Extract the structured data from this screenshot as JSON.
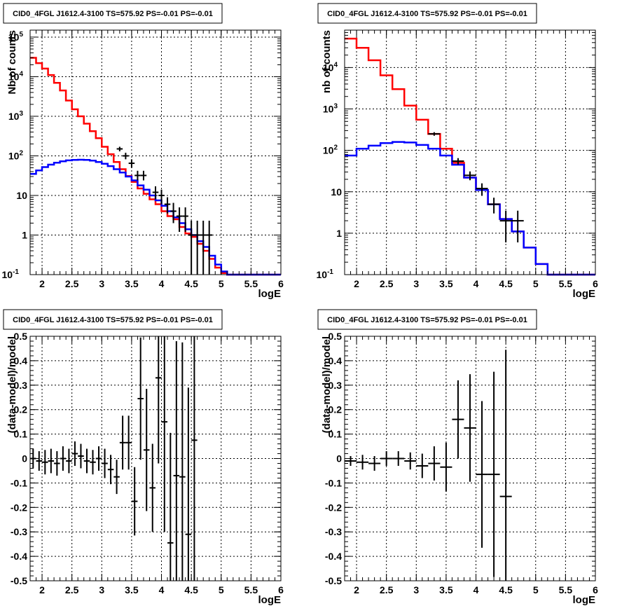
{
  "chart_data": [
    {
      "id": "counts-fine",
      "type": "line",
      "title": "CID0_4FGL J1612.4-3100 TS=575.92 PS=-0.01 PS=-0.01",
      "xlabel": "logE",
      "ylabel": "Nb of counts",
      "xlim": [
        1.8,
        6.0
      ],
      "ylim": [
        0.1,
        150000
      ],
      "yscale": "log",
      "grid": true,
      "x_ticks": [
        2,
        2.5,
        3,
        3.5,
        4,
        4.5,
        5,
        5.5,
        6
      ],
      "x_tick_labels": [
        "2",
        "2.5",
        "3",
        "3.5",
        "4",
        "4.5",
        "5",
        "5.5",
        "6"
      ],
      "y_ticks": [
        0.1,
        1,
        10,
        100,
        1000,
        10000,
        100000
      ],
      "y_tick_labels": [
        "10^-1",
        "1",
        "10",
        "10^2",
        "10^3",
        "10^4",
        "10^5"
      ],
      "bin_edges": [
        1.8,
        1.9,
        2.0,
        2.1,
        2.2,
        2.3,
        2.4,
        2.5,
        2.6,
        2.7,
        2.8,
        2.9,
        3.0,
        3.1,
        3.2,
        3.3,
        3.4,
        3.5,
        3.6,
        3.7,
        3.8,
        3.9,
        4.0,
        4.1,
        4.2,
        4.3,
        4.4,
        4.5,
        4.6,
        4.7,
        4.8,
        4.9,
        5.0,
        5.1,
        5.2,
        5.3,
        5.4,
        5.5,
        5.6,
        5.7,
        5.8,
        5.9,
        6.0
      ],
      "series": [
        {
          "color": "#ff0000",
          "drawstyle": "steps",
          "values": [
            30000,
            22000,
            16000,
            11000,
            7000,
            4500,
            2500,
            1500,
            1000,
            650,
            420,
            280,
            170,
            110,
            70,
            46,
            31,
            22,
            15,
            11,
            8,
            6,
            4,
            3,
            2.5,
            1.6,
            1.1,
            0.9,
            0.6,
            0.4,
            0.25,
            0.15,
            0.11,
            0.1,
            0.1,
            0.1,
            0.1,
            0.1,
            0.1,
            0.1,
            0.1,
            0.1
          ]
        },
        {
          "color": "#0000ff",
          "drawstyle": "steps",
          "values": [
            35,
            43,
            52,
            60,
            67,
            73,
            77,
            79,
            80,
            79,
            76,
            70,
            63,
            55,
            46,
            38,
            30,
            24,
            18,
            14,
            10,
            7.5,
            5.5,
            4,
            2.8,
            2,
            1.4,
            1,
            0.7,
            0.5,
            0.3,
            0.18,
            0.12,
            0.1,
            0.1,
            0.1,
            0.1,
            0.1,
            0.1,
            0.1,
            0.1,
            0.1
          ]
        },
        {
          "color": "#000000",
          "drawstyle": "points",
          "points": [
            {
              "x": 3.3,
              "y": 150,
              "lo": 130,
              "hi": 170
            },
            {
              "x": 3.4,
              "y": 100,
              "lo": 82,
              "hi": 120
            },
            {
              "x": 3.5,
              "y": 65,
              "lo": 50,
              "hi": 82
            },
            {
              "x": 3.6,
              "y": 32,
              "lo": 24,
              "hi": 42
            },
            {
              "x": 3.7,
              "y": 32,
              "lo": 24,
              "hi": 42
            },
            {
              "x": 3.9,
              "y": 12,
              "lo": 8,
              "hi": 17
            },
            {
              "x": 4.0,
              "y": 10,
              "lo": 6,
              "hi": 14
            },
            {
              "x": 4.1,
              "y": 6,
              "lo": 3.5,
              "hi": 9
            },
            {
              "x": 4.2,
              "y": 4,
              "lo": 2,
              "hi": 6.5
            },
            {
              "x": 4.3,
              "y": 3,
              "lo": 1.2,
              "hi": 5
            },
            {
              "x": 4.4,
              "y": 3,
              "lo": 1.2,
              "hi": 5
            },
            {
              "x": 4.5,
              "y": 1,
              "lo": 0.1,
              "hi": 2.3
            },
            {
              "x": 4.6,
              "y": 1,
              "lo": 0.1,
              "hi": 2.3
            },
            {
              "x": 4.7,
              "y": 1,
              "lo": 0.1,
              "hi": 2.3
            },
            {
              "x": 4.8,
              "y": 1,
              "lo": 0.1,
              "hi": 2.3
            }
          ]
        }
      ]
    },
    {
      "id": "counts-coarse",
      "type": "line",
      "title": "CID0_4FGL J1612.4-3100 TS=575.92 PS=-0.01 PS=-0.01",
      "xlabel": "logE",
      "ylabel": "nb of counts",
      "xlim": [
        1.8,
        6.0
      ],
      "ylim": [
        0.1,
        80000
      ],
      "yscale": "log",
      "grid": true,
      "x_ticks": [
        2,
        2.5,
        3,
        3.5,
        4,
        4.5,
        5,
        5.5,
        6
      ],
      "x_tick_labels": [
        "2",
        "2.5",
        "3",
        "3.5",
        "4",
        "4.5",
        "5",
        "5.5",
        "6"
      ],
      "y_ticks": [
        0.1,
        1,
        10,
        100,
        1000,
        10000
      ],
      "y_tick_labels": [
        "10^-1",
        "1",
        "10",
        "10^2",
        "10^3",
        "10^4"
      ],
      "bin_edges": [
        1.8,
        2.0,
        2.2,
        2.4,
        2.6,
        2.8,
        3.0,
        3.2,
        3.4,
        3.6,
        3.8,
        4.0,
        4.2,
        4.4,
        4.6,
        4.8,
        5.0,
        5.2,
        5.4,
        5.6,
        5.8,
        6.0
      ],
      "series": [
        {
          "color": "#ff0000",
          "drawstyle": "steps",
          "values": [
            50000,
            30000,
            15000,
            6500,
            3000,
            1200,
            550,
            250,
            110,
            50,
            22,
            11,
            5,
            2.2,
            1.1,
            0.45,
            0.18,
            0.1,
            0.1,
            0.1,
            0.1
          ]
        },
        {
          "color": "#0000ff",
          "drawstyle": "steps",
          "values": [
            75,
            110,
            130,
            150,
            160,
            155,
            135,
            110,
            75,
            45,
            22,
            11,
            5,
            2.2,
            1.1,
            0.45,
            0.18,
            0.1,
            0.1,
            0.1,
            0.1
          ]
        },
        {
          "color": "#000000",
          "drawstyle": "points",
          "points": [
            {
              "x": 3.3,
              "y": 250,
              "lo": 225,
              "hi": 275
            },
            {
              "x": 3.7,
              "y": 55,
              "lo": 45,
              "hi": 65
            },
            {
              "x": 3.9,
              "y": 25,
              "lo": 19,
              "hi": 31
            },
            {
              "x": 4.1,
              "y": 12,
              "lo": 8,
              "hi": 16
            },
            {
              "x": 4.3,
              "y": 5,
              "lo": 3,
              "hi": 7.2
            },
            {
              "x": 4.5,
              "y": 2,
              "lo": 0.6,
              "hi": 3.5
            },
            {
              "x": 4.7,
              "y": 2,
              "lo": 0.6,
              "hi": 3.5
            }
          ]
        }
      ]
    },
    {
      "id": "residuals-fine",
      "type": "scatter",
      "title": "CID0_4FGL J1612.4-3100 TS=575.92 PS=-0.01 PS=-0.01",
      "xlabel": "logE",
      "ylabel": "(data-model)/model",
      "xlim": [
        1.8,
        6.0
      ],
      "ylim": [
        -0.5,
        0.5
      ],
      "yscale": "linear",
      "grid": true,
      "x_ticks": [
        2,
        2.5,
        3,
        3.5,
        4,
        4.5,
        5,
        5.5,
        6
      ],
      "x_tick_labels": [
        "2",
        "2.5",
        "3",
        "3.5",
        "4",
        "4.5",
        "5",
        "5.5",
        "6"
      ],
      "y_ticks": [
        -0.5,
        -0.4,
        -0.3,
        -0.2,
        -0.1,
        0,
        0.1,
        0.2,
        0.3,
        0.4,
        0.5
      ],
      "y_tick_labels": [
        "-0.5",
        "-0.4",
        "-0.3",
        "-0.2",
        "-0.1",
        "0",
        "0.1",
        "0.2",
        "0.3",
        "0.4",
        "0.5"
      ],
      "half_bin": 0.05,
      "points": [
        {
          "x": 1.85,
          "y": 0.0,
          "err": 0.04
        },
        {
          "x": 1.95,
          "y": -0.01,
          "err": 0.04
        },
        {
          "x": 2.05,
          "y": -0.015,
          "err": 0.05
        },
        {
          "x": 2.15,
          "y": -0.01,
          "err": 0.05
        },
        {
          "x": 2.25,
          "y": -0.02,
          "err": 0.05
        },
        {
          "x": 2.35,
          "y": 0.0,
          "err": 0.05
        },
        {
          "x": 2.45,
          "y": -0.01,
          "err": 0.05
        },
        {
          "x": 2.55,
          "y": 0.02,
          "err": 0.05
        },
        {
          "x": 2.65,
          "y": 0.01,
          "err": 0.05
        },
        {
          "x": 2.75,
          "y": -0.01,
          "err": 0.05
        },
        {
          "x": 2.85,
          "y": -0.015,
          "err": 0.05
        },
        {
          "x": 2.95,
          "y": 0.0,
          "err": 0.05
        },
        {
          "x": 3.05,
          "y": -0.02,
          "err": 0.06
        },
        {
          "x": 3.15,
          "y": -0.045,
          "err": 0.06
        },
        {
          "x": 3.25,
          "y": -0.075,
          "err": 0.07
        },
        {
          "x": 3.35,
          "y": 0.065,
          "err": 0.11
        },
        {
          "x": 3.45,
          "y": 0.065,
          "err": 0.11
        },
        {
          "x": 3.55,
          "y": -0.175,
          "err": 0.14
        },
        {
          "x": 3.65,
          "y": 0.245,
          "err": 0.25
        },
        {
          "x": 3.75,
          "y": 0.035,
          "err": 0.25
        },
        {
          "x": 3.85,
          "y": -0.12,
          "err": 0.18
        },
        {
          "x": 3.95,
          "y": 0.33,
          "err": 0.35
        },
        {
          "x": 4.05,
          "y": 0.15,
          "err": 0.45
        },
        {
          "x": 4.15,
          "y": -0.345,
          "err": 0.45
        },
        {
          "x": 4.25,
          "y": -0.07,
          "err": 0.55
        },
        {
          "x": 4.35,
          "y": -0.075,
          "err": 0.55
        },
        {
          "x": 4.45,
          "y": -0.31,
          "err": 0.6
        },
        {
          "x": 4.55,
          "y": 0.075,
          "err": 0.6
        }
      ]
    },
    {
      "id": "residuals-coarse",
      "type": "scatter",
      "title": "CID0_4FGL J1612.4-3100 TS=575.92 PS=-0.01 PS=-0.01",
      "xlabel": "logE",
      "ylabel": "(data-model)/model",
      "xlim": [
        1.8,
        6.0
      ],
      "ylim": [
        -0.5,
        0.5
      ],
      "yscale": "linear",
      "grid": true,
      "x_ticks": [
        2,
        2.5,
        3,
        3.5,
        4,
        4.5,
        5,
        5.5,
        6
      ],
      "x_tick_labels": [
        "2",
        "2.5",
        "3",
        "3.5",
        "4",
        "4.5",
        "5",
        "5.5",
        "6"
      ],
      "y_ticks": [
        -0.5,
        -0.4,
        -0.3,
        -0.2,
        -0.1,
        0,
        0.1,
        0.2,
        0.3,
        0.4,
        0.5
      ],
      "y_tick_labels": [
        "-0.5",
        "-0.4",
        "-0.3",
        "-0.2",
        "-0.1",
        "0",
        "0.1",
        "0.2",
        "0.3",
        "0.4",
        "0.5"
      ],
      "half_bin": 0.1,
      "points": [
        {
          "x": 1.9,
          "y": -0.01,
          "err": 0.02
        },
        {
          "x": 2.1,
          "y": -0.015,
          "err": 0.03
        },
        {
          "x": 2.3,
          "y": -0.02,
          "err": 0.03
        },
        {
          "x": 2.5,
          "y": 0.0,
          "err": 0.03
        },
        {
          "x": 2.7,
          "y": 0.0,
          "err": 0.03
        },
        {
          "x": 2.9,
          "y": -0.01,
          "err": 0.035
        },
        {
          "x": 3.1,
          "y": -0.03,
          "err": 0.05
        },
        {
          "x": 3.3,
          "y": -0.02,
          "err": 0.07
        },
        {
          "x": 3.5,
          "y": -0.035,
          "err": 0.1
        },
        {
          "x": 3.7,
          "y": 0.16,
          "err": 0.16
        },
        {
          "x": 3.9,
          "y": 0.125,
          "err": 0.22
        },
        {
          "x": 4.1,
          "y": -0.065,
          "err": 0.3
        },
        {
          "x": 4.3,
          "y": -0.065,
          "err": 0.42
        },
        {
          "x": 4.5,
          "y": -0.155,
          "err": 0.6
        }
      ]
    }
  ]
}
